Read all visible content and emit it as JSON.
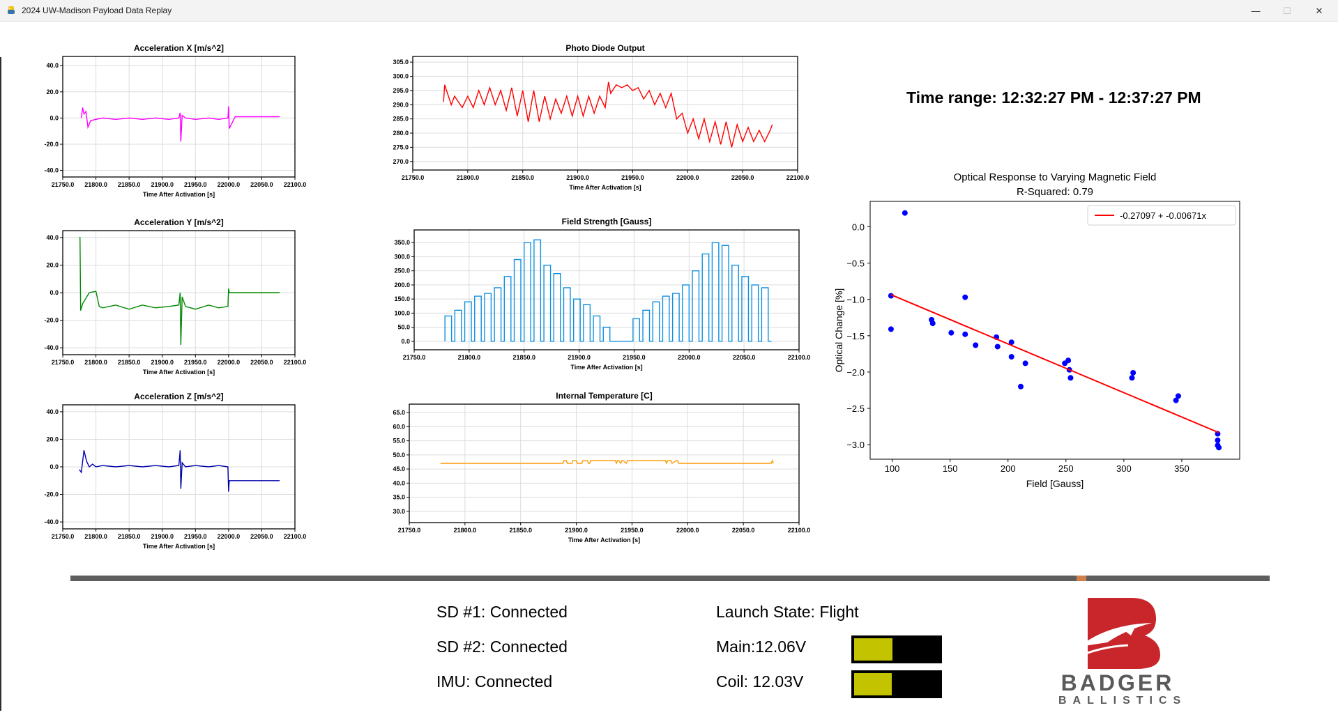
{
  "window": {
    "title": "2024 UW-Madison Payload Data Replay",
    "minimize_glyph": "—",
    "maximize_glyph": "☐",
    "close_glyph": "✕"
  },
  "time_range": "Time range: 12:32:27 PM - 12:37:27 PM",
  "chart_data": [
    {
      "id": "accel_x",
      "type": "line",
      "title": "Acceleration X [m/s^2]",
      "xlabel": "Time After Activation [s]",
      "ylabel": "",
      "xlim": [
        21750,
        22100
      ],
      "ylim": [
        -45,
        47
      ],
      "xticks": [
        21750,
        21800,
        21850,
        21900,
        21950,
        22000,
        22050,
        22100
      ],
      "xtick_labels": [
        "21750.0",
        "21800.0",
        "21850.0",
        "21900.0",
        "21950.0",
        "22000.0",
        "22050.0",
        "22100.0"
      ],
      "yticks": [
        -40,
        -20,
        0,
        20,
        40
      ],
      "ytick_labels": [
        "-40.0",
        "-20.0",
        "0.0",
        "20.0",
        "40.0"
      ],
      "grid": true,
      "color": "#ff00ff",
      "series": [
        {
          "x": [
            21778,
            21780,
            21782,
            21785,
            21788,
            21792,
            21800,
            21810,
            21830,
            21850,
            21870,
            21890,
            21910,
            21925,
            21927,
            21928,
            21930,
            21935,
            21950,
            21970,
            21985,
            21999,
            22000,
            22001,
            22010,
            22050,
            22077
          ],
          "y": [
            0,
            8,
            3,
            5,
            -7,
            -2,
            -1,
            0,
            -1,
            0,
            -1,
            0,
            -1,
            0,
            4,
            -18,
            2,
            0,
            -1,
            0,
            -1,
            0,
            9,
            -8,
            1,
            1,
            1
          ]
        }
      ]
    },
    {
      "id": "accel_y",
      "type": "line",
      "title": "Acceleration Y [m/s^2]",
      "xlabel": "Time After Activation [s]",
      "ylabel": "",
      "xlim": [
        21750,
        22100
      ],
      "ylim": [
        -45,
        45
      ],
      "xticks": [
        21750,
        21800,
        21850,
        21900,
        21950,
        22000,
        22050,
        22100
      ],
      "xtick_labels": [
        "21750.0",
        "21800.0",
        "21850.0",
        "21900.0",
        "21950.0",
        "22000.0",
        "22050.0",
        "22100.0"
      ],
      "yticks": [
        -40,
        -20,
        0,
        20,
        40
      ],
      "ytick_labels": [
        "-40.0",
        "-20.0",
        "0.0",
        "20.0",
        "40.0"
      ],
      "grid": true,
      "color": "#008800",
      "series": [
        {
          "x": [
            21775,
            21776,
            21777,
            21780,
            21790,
            21800,
            21805,
            21810,
            21830,
            21850,
            21870,
            21890,
            21910,
            21925,
            21927,
            21928,
            21930,
            21935,
            21950,
            21970,
            21985,
            21999,
            22000,
            22001,
            22050,
            22077
          ],
          "y": [
            40,
            40,
            -13,
            -8,
            0,
            1,
            -10,
            -11,
            -9,
            -12,
            -9,
            -11,
            -10,
            -9,
            0,
            -38,
            -3,
            -10,
            -12,
            -9,
            -11,
            -10,
            3,
            0,
            0,
            0
          ]
        }
      ]
    },
    {
      "id": "accel_z",
      "type": "line",
      "title": "Acceleration Z [m/s^2]",
      "xlabel": "Time After Activation [s]",
      "ylabel": "",
      "xlim": [
        21750,
        22100
      ],
      "ylim": [
        -45,
        45
      ],
      "xticks": [
        21750,
        21800,
        21850,
        21900,
        21950,
        22000,
        22050,
        22100
      ],
      "xtick_labels": [
        "21750.0",
        "21800.0",
        "21850.0",
        "21900.0",
        "21950.0",
        "22000.0",
        "22050.0",
        "22100.0"
      ],
      "yticks": [
        -40,
        -20,
        0,
        20,
        40
      ],
      "ytick_labels": [
        "-40.0",
        "-20.0",
        "0.0",
        "20.0",
        "40.0"
      ],
      "grid": true,
      "color": "#0000aa",
      "series": [
        {
          "x": [
            21775,
            21778,
            21782,
            21786,
            21790,
            21795,
            21800,
            21810,
            21830,
            21850,
            21870,
            21890,
            21910,
            21925,
            21927,
            21928,
            21930,
            21935,
            21950,
            21970,
            21985,
            21999,
            22000,
            22001,
            22050,
            22077
          ],
          "y": [
            -2,
            -4,
            12,
            4,
            0,
            2,
            0,
            1,
            0,
            1,
            0,
            1,
            0,
            1,
            12,
            -16,
            3,
            0,
            1,
            0,
            1,
            0,
            -18,
            -10,
            -10,
            -10
          ]
        }
      ]
    },
    {
      "id": "photo_diode",
      "type": "line",
      "title": "Photo Diode Output",
      "xlabel": "Time After Activation [s]",
      "ylabel": "",
      "xlim": [
        21750,
        22100
      ],
      "ylim": [
        267,
        307
      ],
      "xticks": [
        21750,
        21800,
        21850,
        21900,
        21950,
        22000,
        22050,
        22100
      ],
      "xtick_labels": [
        "21750.0",
        "21800.0",
        "21850.0",
        "21900.0",
        "21950.0",
        "22000.0",
        "22050.0",
        "22100.0"
      ],
      "yticks": [
        270,
        275,
        280,
        285,
        290,
        295,
        300,
        305
      ],
      "ytick_labels": [
        "270.0",
        "275.0",
        "280.0",
        "285.0",
        "290.0",
        "295.0",
        "300.0",
        "305.0"
      ],
      "grid": true,
      "color": "#ff0000",
      "series": [
        {
          "x": [
            21778,
            21779,
            21785,
            21788,
            21795,
            21800,
            21805,
            21810,
            21815,
            21820,
            21825,
            21830,
            21835,
            21840,
            21845,
            21850,
            21855,
            21860,
            21865,
            21870,
            21875,
            21880,
            21885,
            21890,
            21895,
            21900,
            21905,
            21910,
            21915,
            21920,
            21925,
            21928,
            21930,
            21935,
            21940,
            21945,
            21950,
            21955,
            21960,
            21965,
            21970,
            21975,
            21980,
            21985,
            21990,
            21995,
            22000,
            22005,
            22010,
            22015,
            22020,
            22025,
            22030,
            22035,
            22040,
            22045,
            22050,
            22055,
            22060,
            22065,
            22070,
            22075,
            22077
          ],
          "y": [
            291,
            297,
            290,
            293,
            289,
            293,
            289,
            295,
            290,
            296,
            290,
            295,
            288,
            296,
            286,
            295,
            284,
            295,
            284,
            293,
            285,
            292,
            287,
            293,
            286,
            293,
            286,
            293,
            287,
            293,
            289,
            298,
            294,
            297,
            296,
            297,
            295,
            296,
            292,
            295,
            290,
            294,
            289,
            294,
            285,
            287,
            280,
            285,
            278,
            285,
            277,
            284,
            276,
            284,
            275,
            283,
            277,
            282,
            277,
            281,
            277,
            281,
            283
          ]
        }
      ]
    },
    {
      "id": "field_strength",
      "type": "line",
      "title": "Field Strength [Gauss]",
      "xlabel": "Time After Activation [s]",
      "ylabel": "",
      "xlim": [
        21750,
        22100
      ],
      "ylim": [
        -30,
        395
      ],
      "xticks": [
        21750,
        21800,
        21850,
        21900,
        21950,
        22000,
        22050,
        22100
      ],
      "xtick_labels": [
        "21750.0",
        "21800.0",
        "21850.0",
        "21900.0",
        "21950.0",
        "22000.0",
        "22050.0",
        "22100.0"
      ],
      "yticks": [
        0,
        50,
        100,
        150,
        200,
        250,
        300,
        350
      ],
      "ytick_labels": [
        "0.0",
        "50.0",
        "100.0",
        "150.0",
        "200.0",
        "250.0",
        "300.0",
        "350.0"
      ],
      "grid": true,
      "color": "#1090e0",
      "pulse_on": 6,
      "pulse_off": 3,
      "series": [
        {
          "x": [
            21778,
            21787,
            21796,
            21805,
            21814,
            21823,
            21832,
            21841,
            21850,
            21859,
            21868,
            21877,
            21886,
            21895,
            21904,
            21913,
            21922,
            21931,
            21940,
            21949,
            21958,
            21967,
            21976,
            21985,
            21994,
            22003,
            22012,
            22021,
            22030,
            22039,
            22048,
            22057,
            22066
          ],
          "y": [
            90,
            110,
            140,
            160,
            170,
            190,
            230,
            290,
            350,
            360,
            270,
            240,
            190,
            150,
            130,
            90,
            50,
            0,
            0,
            80,
            110,
            140,
            160,
            170,
            200,
            250,
            310,
            350,
            340,
            270,
            230,
            200,
            190
          ]
        }
      ]
    },
    {
      "id": "internal_temp",
      "type": "line",
      "title": "Internal Temperature [C]",
      "xlabel": "Time After Activation [s]",
      "ylabel": "",
      "xlim": [
        21750,
        22100
      ],
      "ylim": [
        26,
        68
      ],
      "xticks": [
        21750,
        21800,
        21850,
        21900,
        21950,
        22000,
        22050,
        22100
      ],
      "xtick_labels": [
        "21750.0",
        "21800.0",
        "21850.0",
        "21900.0",
        "21950.0",
        "22000.0",
        "22050.0",
        "22100.0"
      ],
      "yticks": [
        30,
        35,
        40,
        45,
        50,
        55,
        60,
        65
      ],
      "ytick_labels": [
        "30.0",
        "35.0",
        "40.0",
        "45.0",
        "50.0",
        "55.0",
        "60.0",
        "65.0"
      ],
      "grid": true,
      "color": "#ff9900",
      "series": [
        {
          "x": [
            21778,
            21888,
            21889,
            21891,
            21892,
            21896,
            21897,
            21900,
            21901,
            21905,
            21906,
            21910,
            21911,
            21912,
            21913,
            21930,
            21935,
            21936,
            21937,
            21938,
            21940,
            21941,
            21942,
            21945,
            21946,
            21980,
            21981,
            21982,
            21985,
            21986,
            21990,
            21991,
            21992,
            21993,
            22075,
            22076,
            22077
          ],
          "y": [
            47,
            47,
            48,
            48,
            47,
            47,
            48,
            48,
            47,
            47,
            48,
            48,
            47,
            47,
            48,
            48,
            48,
            47,
            48,
            48,
            47,
            48,
            48,
            47,
            48,
            48,
            47,
            48,
            48,
            47,
            48,
            48,
            47,
            47,
            47,
            48,
            47
          ]
        }
      ]
    },
    {
      "id": "optical_response",
      "type": "scatter",
      "title": "Optical Response to Varying Magnetic Field",
      "subtitle": "R-Squared: 0.79",
      "xlabel": "Field [Gauss]",
      "ylabel": "Optical Change [%]",
      "xlim": [
        81,
        400
      ],
      "ylim": [
        -3.2,
        0.35
      ],
      "xticks": [
        100,
        150,
        200,
        250,
        300,
        350
      ],
      "xtick_labels": [
        "100",
        "150",
        "200",
        "250",
        "300",
        "350"
      ],
      "yticks": [
        0.0,
        -0.5,
        -1.0,
        -1.5,
        -2.0,
        -2.5,
        -3.0
      ],
      "ytick_labels": [
        "0.0",
        "−0.5",
        "−1.0",
        "−1.5",
        "−2.0",
        "−2.5",
        "−3.0"
      ],
      "grid": false,
      "point_color": "#0000ff",
      "fit_color": "#ff0000",
      "points": [
        {
          "x": 99,
          "y": -1.41
        },
        {
          "x": 99,
          "y": -0.95
        },
        {
          "x": 111,
          "y": 0.19
        },
        {
          "x": 134,
          "y": -1.28
        },
        {
          "x": 135,
          "y": -1.33
        },
        {
          "x": 151,
          "y": -1.46
        },
        {
          "x": 163,
          "y": -0.97
        },
        {
          "x": 163,
          "y": -1.48
        },
        {
          "x": 172,
          "y": -1.63
        },
        {
          "x": 190,
          "y": -1.52
        },
        {
          "x": 191,
          "y": -1.65
        },
        {
          "x": 203,
          "y": -1.59
        },
        {
          "x": 203,
          "y": -1.79
        },
        {
          "x": 211,
          "y": -2.2
        },
        {
          "x": 215,
          "y": -1.88
        },
        {
          "x": 249,
          "y": -1.88
        },
        {
          "x": 252,
          "y": -1.84
        },
        {
          "x": 253,
          "y": -1.97
        },
        {
          "x": 254,
          "y": -2.08
        },
        {
          "x": 307,
          "y": -2.08
        },
        {
          "x": 308,
          "y": -2.01
        },
        {
          "x": 345,
          "y": -2.39
        },
        {
          "x": 347,
          "y": -2.33
        },
        {
          "x": 381,
          "y": -2.85
        },
        {
          "x": 381,
          "y": -2.94
        },
        {
          "x": 381,
          "y": -3.01
        },
        {
          "x": 382,
          "y": -3.04
        }
      ],
      "fit": {
        "intercept": -0.27097,
        "slope": -0.00671,
        "x_range": [
          99,
          382
        ]
      },
      "legend": {
        "label": "-0.27097 + -0.00671x",
        "location": "upper right"
      }
    }
  ],
  "timeline": {
    "progress": 0.843
  },
  "status": {
    "sd1": "SD #1: Connected",
    "sd2": "SD #2: Connected",
    "imu": "IMU: Connected",
    "launch_state": "Launch State: Flight",
    "main": "Main:12.06V",
    "coil": "Coil: 12.03V",
    "main_level": 0.45,
    "coil_level": 0.44,
    "bar_fill_color": "#c3c300"
  },
  "logo": {
    "word1": "BADGER",
    "word2": "BALLISTICS",
    "color": "#c8262b",
    "text_color": "#5a5a5a"
  }
}
